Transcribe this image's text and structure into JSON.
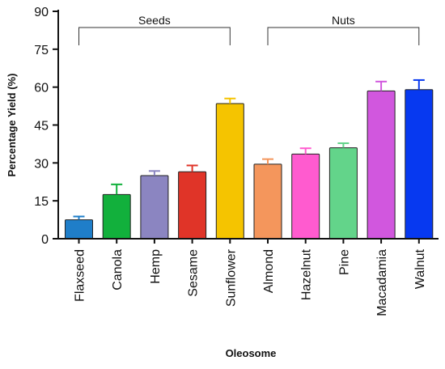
{
  "chart_data": {
    "type": "bar",
    "title": "",
    "xlabel": "Oleosome",
    "ylabel": "Percentage Yield (%)",
    "ylim": [
      0,
      90
    ],
    "yticks": [
      0,
      15,
      30,
      45,
      60,
      75,
      90
    ],
    "grid": false,
    "categories": [
      "Flaxseed",
      "Canola",
      "Hemp",
      "Sesame",
      "Sunflower",
      "Almond",
      "Hazelnut",
      "Pine",
      "Macadamia",
      "Walnut"
    ],
    "values": [
      7.5,
      17.5,
      25.0,
      26.5,
      53.5,
      29.5,
      33.5,
      36.0,
      58.5,
      59.0
    ],
    "error": [
      1.3,
      4.0,
      1.8,
      2.5,
      2.0,
      2.0,
      2.3,
      1.8,
      3.7,
      3.8
    ],
    "colors": [
      "#1f7ec9",
      "#12b03c",
      "#8b85c1",
      "#e03428",
      "#f5c400",
      "#f4965c",
      "#ff5bcf",
      "#63d48a",
      "#d157de",
      "#0739f0"
    ],
    "groups": [
      {
        "label": "Seeds",
        "start": 0,
        "end": 4
      },
      {
        "label": "Nuts",
        "start": 5,
        "end": 9
      }
    ]
  }
}
